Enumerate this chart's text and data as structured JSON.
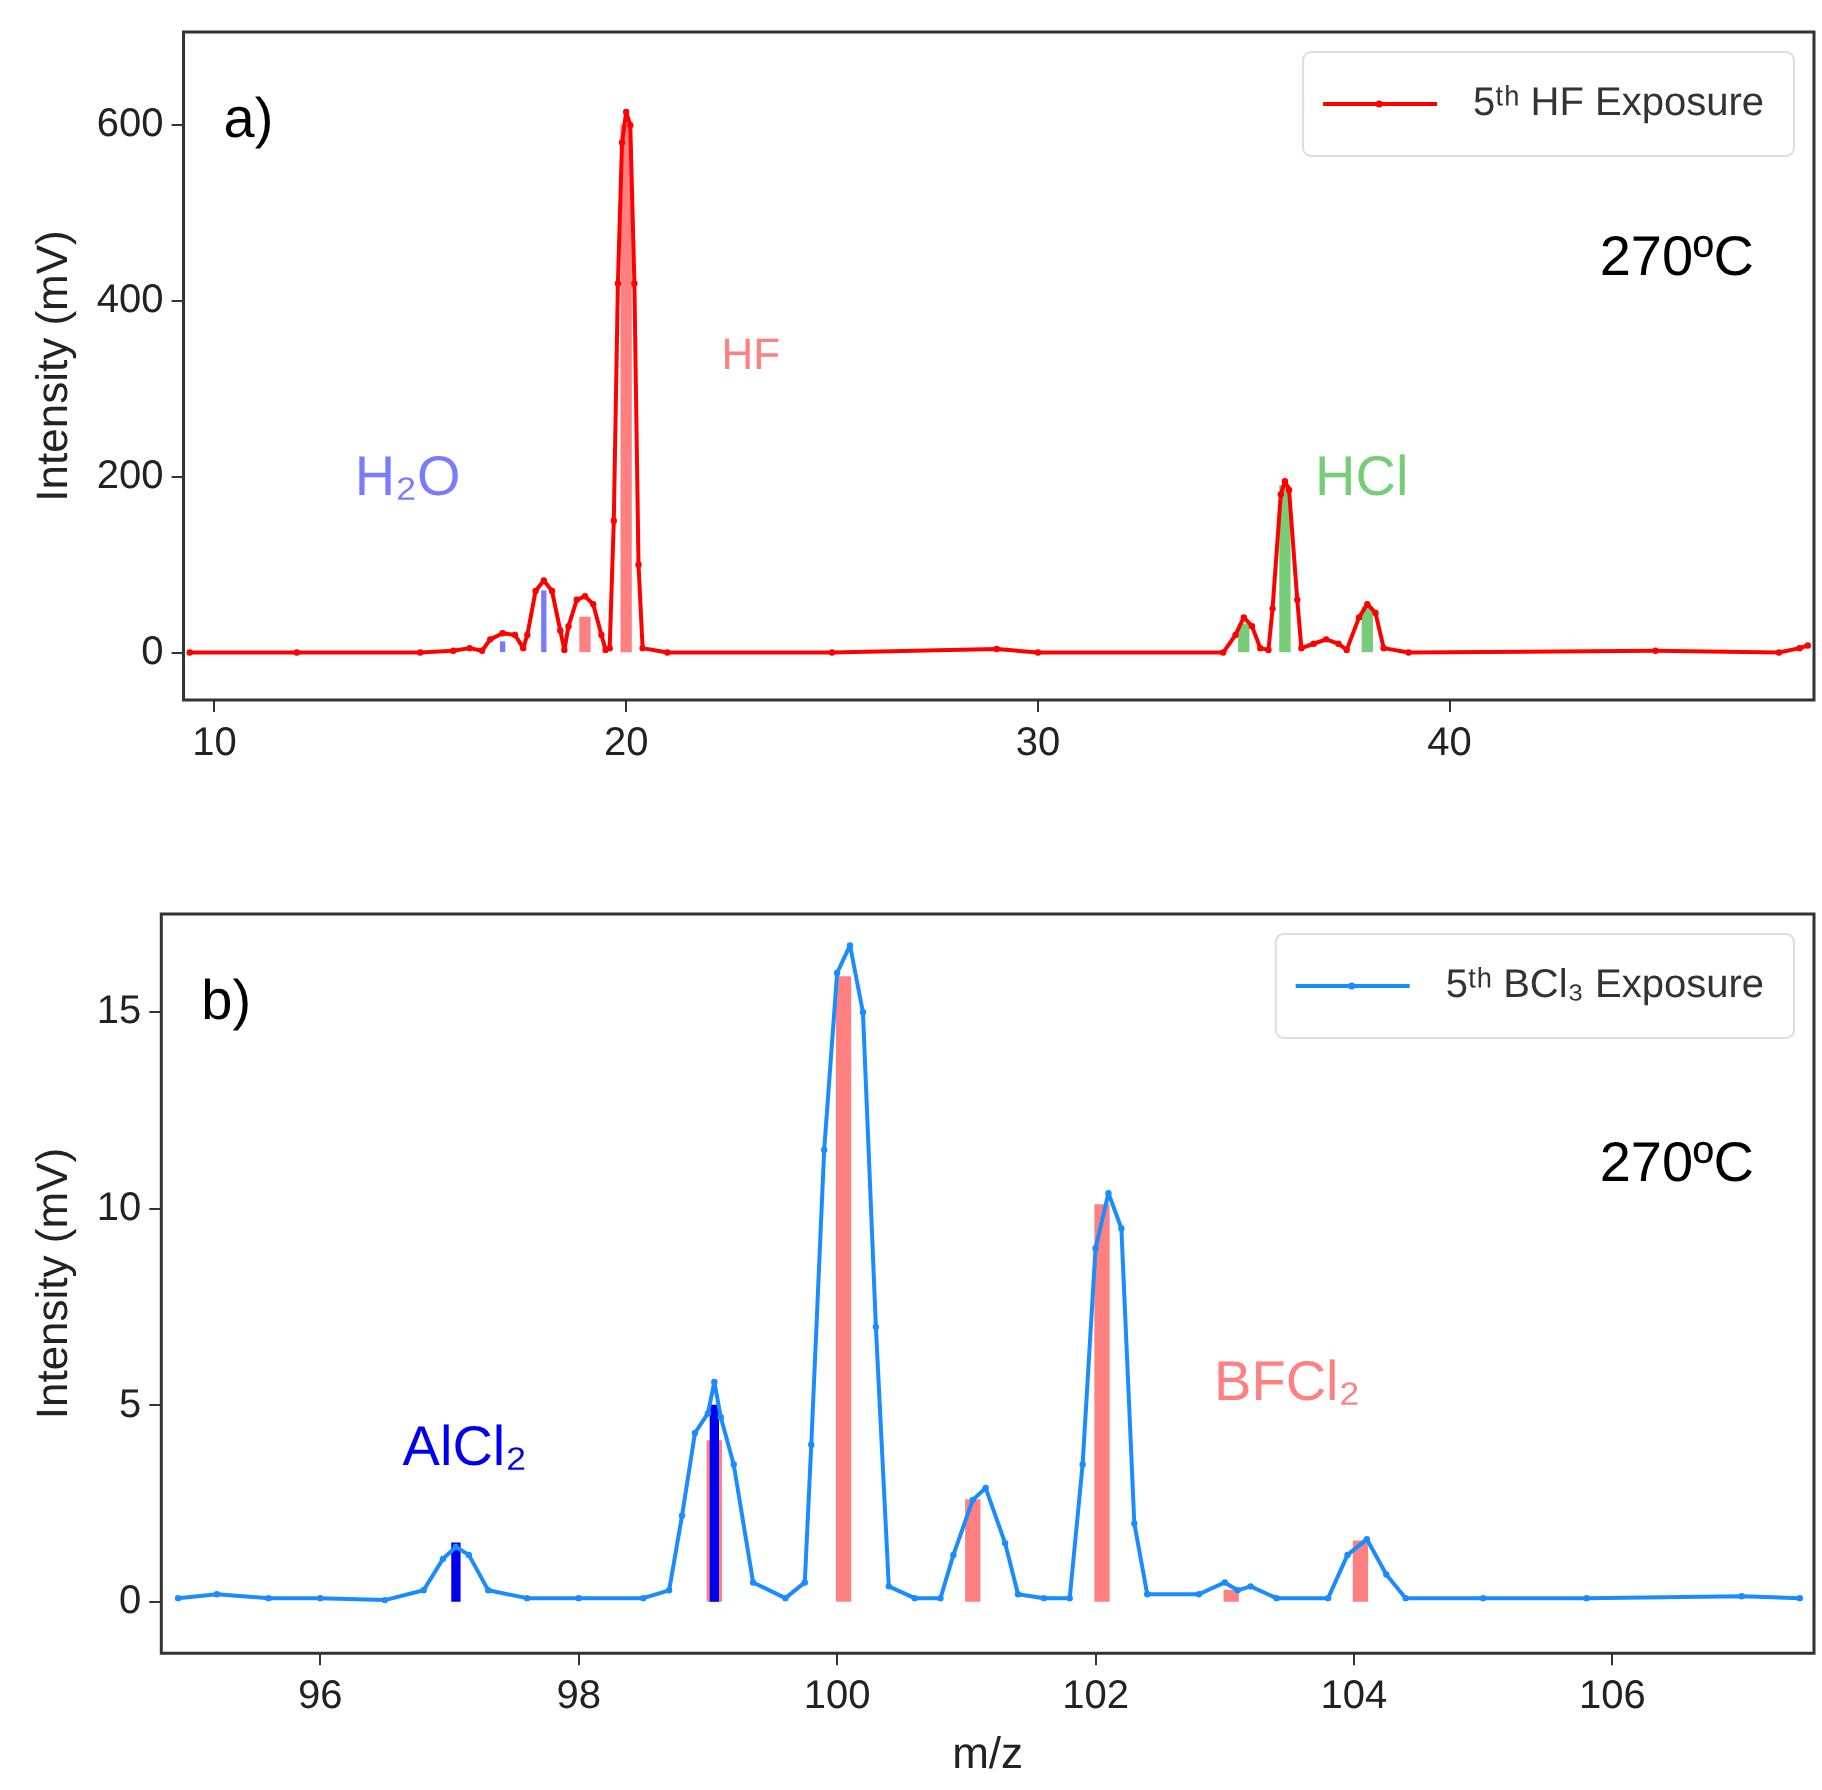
{
  "chart_data": [
    {
      "type": "line",
      "ylabel": "Intensity (mV)",
      "xlim": [
        9.25,
        48.85
      ],
      "ylim": [
        -54,
        706
      ],
      "xticks": [
        10,
        20,
        30,
        40
      ],
      "yticks": [
        0,
        200,
        400,
        600
      ],
      "marker": "circle",
      "legend": "top right",
      "annotations": [
        "a)",
        "270ºC"
      ],
      "series": [
        {
          "name": "5ᵗʰ HF Exposure",
          "color": "#ff0000",
          "x": [
            9.4,
            12,
            15,
            15.8,
            16.2,
            16.5,
            16.7,
            17,
            17.3,
            17.5,
            17.6,
            17.8,
            18,
            18.2,
            18.4,
            18.5,
            18.6,
            18.8,
            19,
            19.2,
            19.4,
            19.5,
            19.6,
            19.7,
            19.8,
            19.9,
            20,
            20.1,
            20.2,
            20.3,
            20.4,
            21,
            25,
            29,
            30,
            34.5,
            34.8,
            35,
            35.2,
            35.4,
            35.6,
            35.7,
            35.9,
            36,
            36.1,
            36.3,
            36.4,
            36.7,
            37,
            37.3,
            37.5,
            37.8,
            38,
            38.2,
            38.4,
            39,
            45,
            48,
            48.5,
            48.7
          ],
          "values": [
            0,
            0,
            0,
            2,
            5,
            2,
            15,
            22,
            20,
            5,
            20,
            70,
            82,
            70,
            25,
            3,
            30,
            60,
            64,
            55,
            20,
            3,
            5,
            150,
            420,
            580,
            615,
            600,
            420,
            100,
            5,
            0,
            0,
            4,
            0,
            0,
            20,
            40,
            30,
            5,
            3,
            50,
            180,
            195,
            185,
            60,
            5,
            10,
            15,
            10,
            3,
            40,
            55,
            45,
            5,
            0,
            2,
            0,
            5,
            8
          ]
        },
        {
          "type": "bar",
          "name": "H₂O",
          "color": "#7b7bff",
          "x": [
            17,
            18
          ],
          "values": [
            12,
            70
          ]
        },
        {
          "type": "bar",
          "name": "HF",
          "color": "#ff8080",
          "x": [
            19,
            20
          ],
          "values": [
            40,
            600
          ]
        },
        {
          "type": "bar",
          "name": "HCl",
          "color": "#77cc77",
          "x": [
            35,
            36,
            38
          ],
          "values": [
            32,
            190,
            52
          ]
        }
      ]
    },
    {
      "type": "line",
      "xlabel": "m/z",
      "ylabel": "Intensity (mV)",
      "xlim": [
        94.77,
        107.56
      ],
      "ylim": [
        -1.3,
        17.5
      ],
      "xticks": [
        96,
        98,
        100,
        102,
        104,
        106
      ],
      "yticks": [
        0,
        5,
        10,
        15
      ],
      "marker": "circle",
      "legend": "top right",
      "annotations": [
        "b)",
        "270ºC"
      ],
      "series": [
        {
          "name": "5ᵗʰ BCl₃ Exposure",
          "color": "#1a8cff",
          "x": [
            94.9,
            95.2,
            95.6,
            96,
            96.5,
            96.8,
            96.95,
            97.05,
            97.15,
            97.3,
            97.6,
            98,
            98.5,
            98.7,
            98.8,
            98.9,
            99,
            99.05,
            99.1,
            99.2,
            99.35,
            99.6,
            99.75,
            99.8,
            99.9,
            100,
            100.1,
            100.2,
            100.3,
            100.4,
            100.6,
            100.8,
            100.9,
            101.05,
            101.15,
            101.3,
            101.4,
            101.6,
            101.8,
            101.9,
            102,
            102.1,
            102.2,
            102.3,
            102.4,
            102.8,
            103,
            103.1,
            103.2,
            103.4,
            103.8,
            103.95,
            104.1,
            104.25,
            104.4,
            105,
            105.8,
            107,
            107.45
          ],
          "values": [
            0.1,
            0.2,
            0.1,
            0.1,
            0.05,
            0.3,
            1.1,
            1.4,
            1.2,
            0.3,
            0.1,
            0.1,
            0.1,
            0.3,
            2.2,
            4.3,
            4.8,
            5.6,
            4.7,
            3.5,
            0.5,
            0.1,
            0.5,
            4,
            11.5,
            16,
            16.7,
            15,
            7,
            0.4,
            0.1,
            0.1,
            1.2,
            2.6,
            2.9,
            1.5,
            0.2,
            0.1,
            0.1,
            3.5,
            9,
            10.4,
            9.5,
            2,
            0.2,
            0.2,
            0.5,
            0.3,
            0.4,
            0.1,
            0.1,
            1.2,
            1.6,
            0.7,
            0.1,
            0.1,
            0.1,
            0.15,
            0.1
          ]
        },
        {
          "type": "bar",
          "name": "AlCl₂",
          "color": "#0000ee",
          "x": [
            97.05,
            99.05
          ],
          "values": [
            1.5,
            5
          ]
        },
        {
          "type": "bar",
          "name": "BFCl₂",
          "color": "#ff8080",
          "x": [
            99.05,
            100.05,
            101.05,
            102.05,
            103.05,
            104.05
          ],
          "values": [
            4.1,
            15.9,
            2.6,
            10.1,
            0.3,
            1.55
          ]
        }
      ]
    }
  ]
}
